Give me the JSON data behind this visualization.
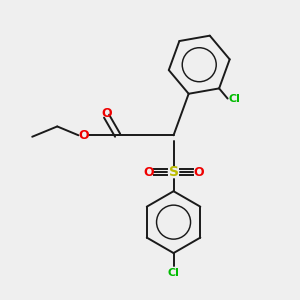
{
  "background_color": "#efefef",
  "bond_color": "#1a1a1a",
  "N_color": "#0000ee",
  "O_color": "#ee0000",
  "S_color": "#bbbb00",
  "Cl_color": "#00bb00",
  "figsize": [
    3.0,
    3.0
  ],
  "dpi": 100,
  "xlim": [
    0,
    10
  ],
  "ylim": [
    0,
    10
  ]
}
